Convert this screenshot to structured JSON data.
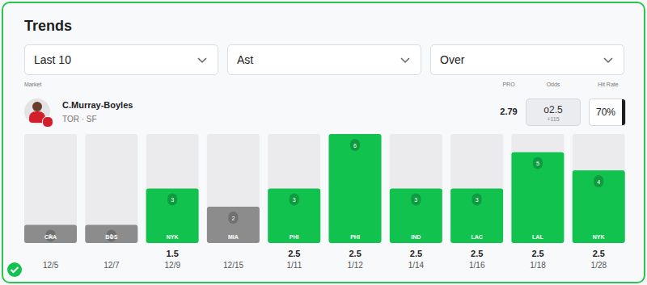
{
  "widget": {
    "title": "Trends",
    "filters": [
      "Last 10",
      "Ast",
      "Over"
    ],
    "market_label": "Market",
    "player": "C.Murray-Boyles",
    "team": "TOR · SF",
    "stats": [
      {
        "label": "PRO",
        "value": 2.79
      },
      {
        "label": "Odds",
        "value": "o2.5",
        "sub": "+115"
      },
      {
        "label": "Hit Rate",
        "value": "70%"
      }
    ]
  },
  "chart_data": {
    "type": "bar",
    "categories": [
      "12/5",
      "12/7",
      "12/9",
      "12/15",
      "1/11",
      "1/12",
      "1/14",
      "1/16",
      "1/18",
      "1/28"
    ],
    "opponents": [
      "CHA",
      "BOS",
      "NYK",
      "MIA",
      "PHI",
      "PHI",
      "IND",
      "LAC",
      "LAL",
      "NYK"
    ],
    "lines": [
      null,
      null,
      1.5,
      null,
      2.5,
      2.5,
      2.5,
      2.5,
      2.5,
      2.5
    ],
    "values": [
      1,
      1,
      3,
      2,
      3,
      6,
      3,
      3,
      5,
      4
    ],
    "colors": [
      "#8c8c8c",
      "#8c8c8c",
      "#12c24f",
      "#8c8c8c",
      "#12c24f",
      "#12c24f",
      "#12c24f",
      "#12c24f",
      "#12c24f",
      "#12c24f"
    ],
    "ylim": [
      0,
      6
    ],
    "data_labels": true,
    "tick_labels": "x"
  }
}
